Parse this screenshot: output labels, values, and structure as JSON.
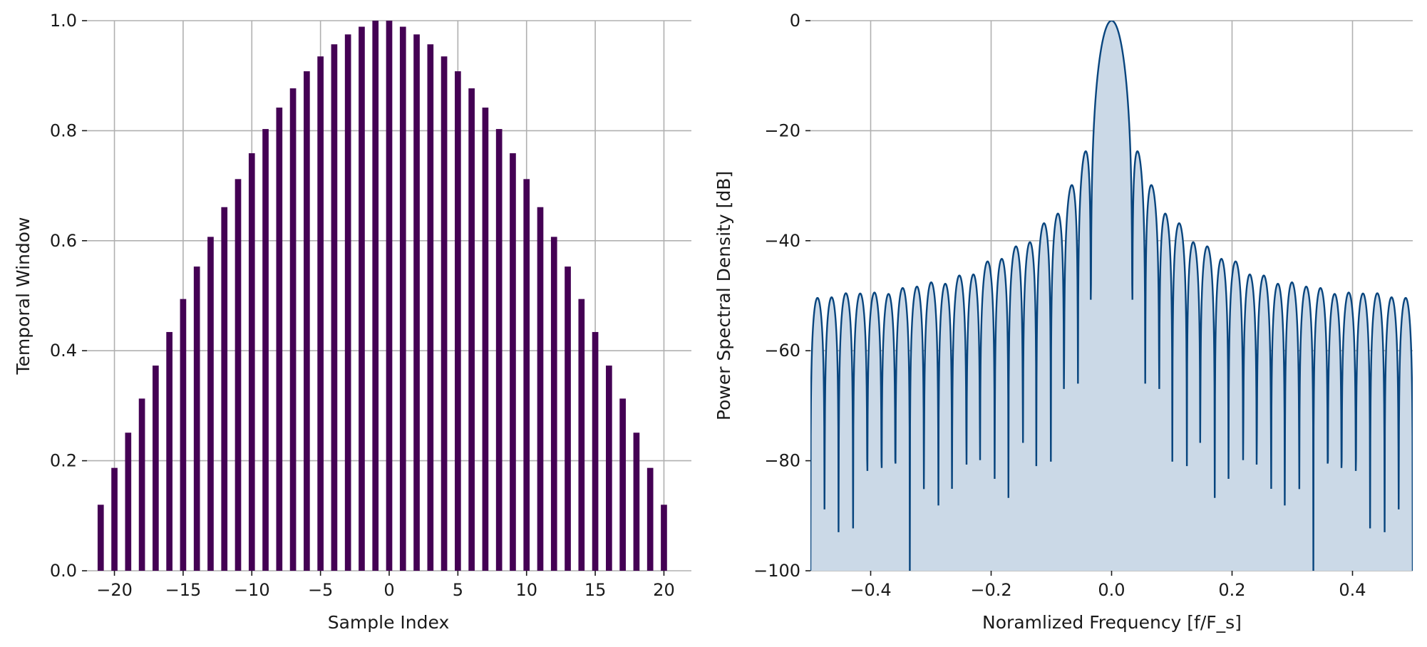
{
  "figure": {
    "panel_count": 2
  },
  "chart_data": [
    {
      "type": "bar",
      "title": "",
      "xlabel": "Sample Index",
      "ylabel": "Temporal Window",
      "xlim": [
        -22,
        22
      ],
      "ylim": [
        0,
        1
      ],
      "x_ticks": [
        -20,
        -15,
        -10,
        -5,
        0,
        5,
        10,
        15,
        20
      ],
      "x_tick_labels": [
        "−20",
        "−15",
        "−10",
        "−5",
        "0",
        "5",
        "10",
        "15",
        "20"
      ],
      "y_ticks": [
        0,
        0.2,
        0.4,
        0.6,
        0.8,
        1.0
      ],
      "y_tick_labels": [
        "0.0",
        "0.2",
        "0.4",
        "0.6",
        "0.8",
        "1.0"
      ],
      "grid": true,
      "bar_color": "#440154",
      "x": [
        -21,
        -20,
        -19,
        -18,
        -17,
        -16,
        -15,
        -14,
        -13,
        -12,
        -11,
        -10,
        -9,
        -8,
        -7,
        -6,
        -5,
        -4,
        -3,
        -2,
        -1,
        0,
        1,
        2,
        3,
        4,
        5,
        6,
        7,
        8,
        9,
        10,
        11,
        12,
        13,
        14,
        15,
        16,
        17,
        18,
        19,
        20
      ],
      "values": [
        0.12,
        0.187,
        0.251,
        0.313,
        0.373,
        0.434,
        0.494,
        0.553,
        0.607,
        0.661,
        0.712,
        0.759,
        0.803,
        0.842,
        0.877,
        0.908,
        0.935,
        0.957,
        0.975,
        0.989,
        1.0,
        1.0,
        0.989,
        0.975,
        0.957,
        0.935,
        0.908,
        0.877,
        0.842,
        0.803,
        0.759,
        0.712,
        0.661,
        0.607,
        0.553,
        0.494,
        0.434,
        0.373,
        0.313,
        0.251,
        0.187,
        0.12
      ]
    },
    {
      "type": "area",
      "title": "",
      "xlabel": "Noramlized Frequency [f/F_s]",
      "ylabel": "Power Spectral Density [dB]",
      "xlim": [
        -0.5,
        0.5
      ],
      "ylim": [
        -100,
        0
      ],
      "x_ticks": [
        -0.4,
        -0.2,
        0.0,
        0.2,
        0.4
      ],
      "x_tick_labels": [
        "−0.4",
        "−0.2",
        "0.0",
        "0.2",
        "0.4"
      ],
      "y_ticks": [
        -100,
        -80,
        -60,
        -40,
        -20,
        0
      ],
      "y_tick_labels": [
        "−100",
        "−80",
        "−60",
        "−40",
        "−20",
        "0"
      ],
      "grid": true,
      "line_color": "#08457e",
      "fill_color": "#cbd9e7",
      "window_length": 42,
      "description_points": {
        "main_lobe_peak_db": 0,
        "first_sidelobe_db": -24,
        "far_sidelobe_db": -50,
        "null_floor_db": -100
      }
    }
  ]
}
